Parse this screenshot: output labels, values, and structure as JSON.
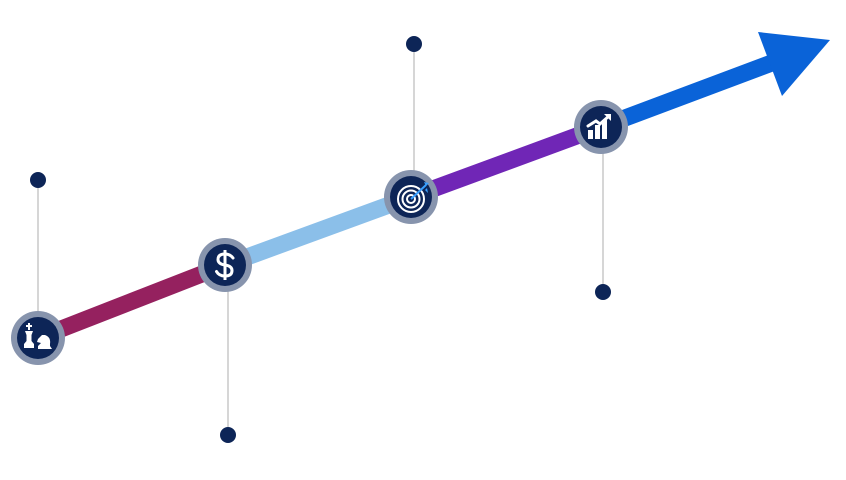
{
  "colors": {
    "background": "#ffffff",
    "node_fill": "#0d2557",
    "node_ring": "#8794ad",
    "connector": "#c9c9c9",
    "marker_dot": "#0d2557",
    "icon_fill": "#ffffff",
    "target_dart": "#3aa0ff"
  },
  "segments": [
    {
      "name": "segment-1",
      "color": "#95215f"
    },
    {
      "name": "segment-2",
      "color": "#8bbfe9"
    },
    {
      "name": "segment-3",
      "color": "#7026b6"
    },
    {
      "name": "segment-4",
      "color": "#0a63d8"
    }
  ],
  "arrow_head": {
    "color": "#0a63d8"
  },
  "steps": [
    {
      "name": "step-strategy",
      "icon": "chess-pieces-icon",
      "marker": "above"
    },
    {
      "name": "step-finance",
      "icon": "dollar-icon",
      "marker": "below"
    },
    {
      "name": "step-target",
      "icon": "target-icon",
      "marker": "above"
    },
    {
      "name": "step-growth",
      "icon": "growth-chart-icon",
      "marker": "below"
    }
  ]
}
